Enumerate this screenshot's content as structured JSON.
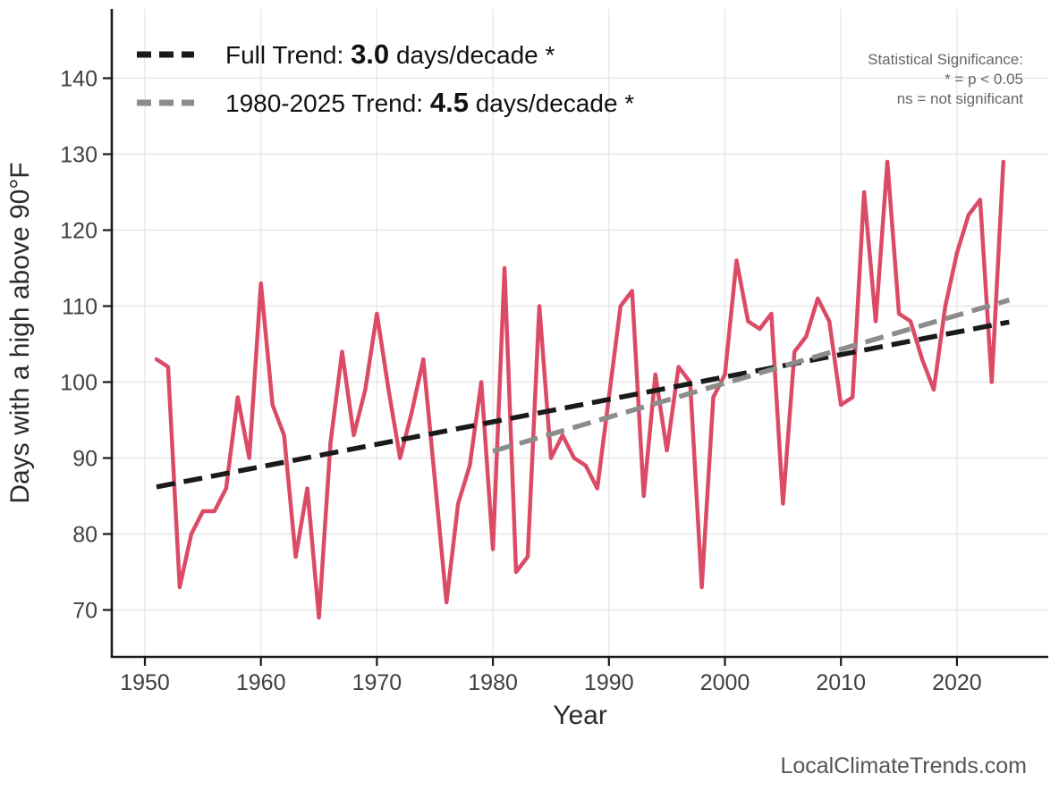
{
  "watermark": "LocalClimateTrends.com",
  "legend": {
    "full_trend": {
      "prefix": "Full Trend: ",
      "value": "3.0",
      "suffix": " days/decade *"
    },
    "recent_trend": {
      "prefix": "1980-2025 Trend: ",
      "value": "4.5",
      "suffix": " days/decade *"
    }
  },
  "significance_note": {
    "line1": "Statistical Significance:",
    "line2": "* = p < 0.05",
    "line3": "ns = not significant"
  },
  "chart_data": {
    "type": "line",
    "title": "",
    "xlabel": "Year",
    "ylabel": "Days with a high above 90°F",
    "x_ticks": [
      1950,
      1960,
      1970,
      1980,
      1990,
      2000,
      2010,
      2020
    ],
    "y_ticks": [
      70,
      80,
      90,
      100,
      110,
      120,
      130,
      140
    ],
    "xlim": [
      1947,
      2027
    ],
    "ylim": [
      64,
      148
    ],
    "grid": true,
    "legend_position": "top-left",
    "grid_color": "#E8E8E8",
    "axis_color": "#1A1A1A",
    "tick_label_color": "#404040",
    "axis_title_color": "#2B2B2B",
    "series": [
      {
        "name": "days-above-90F-annual",
        "color": "#DC4B66",
        "style": "solid",
        "x_start": 1951,
        "x_step": 1,
        "values": [
          103,
          102,
          73,
          80,
          83,
          83,
          86,
          98,
          90,
          113,
          97,
          93,
          77,
          86,
          69,
          92,
          104,
          93,
          99,
          109,
          99,
          90,
          96,
          103,
          87,
          71,
          84,
          89,
          100,
          78,
          115,
          75,
          77,
          110,
          90,
          93,
          90,
          89,
          86,
          98,
          110,
          112,
          85,
          101,
          91,
          102,
          100,
          73,
          98,
          101,
          116,
          108,
          107,
          109,
          84,
          104,
          106,
          111,
          108,
          97,
          98,
          125,
          108,
          129,
          109,
          108,
          103,
          99,
          110,
          117,
          122,
          124,
          100,
          129
        ]
      },
      {
        "name": "full-trend-line",
        "color": "#1A1A1A",
        "style": "dashed",
        "slope_per_decade": 3.0,
        "significant": true,
        "x": [
          1951,
          2024.5
        ],
        "values": [
          86.2,
          107.9
        ]
      },
      {
        "name": "recent-trend-line",
        "color": "#8C8C8C",
        "style": "dashed",
        "slope_per_decade": 4.5,
        "significant": true,
        "x": [
          1980,
          2024.5
        ],
        "values": [
          90.9,
          110.8
        ]
      }
    ]
  }
}
